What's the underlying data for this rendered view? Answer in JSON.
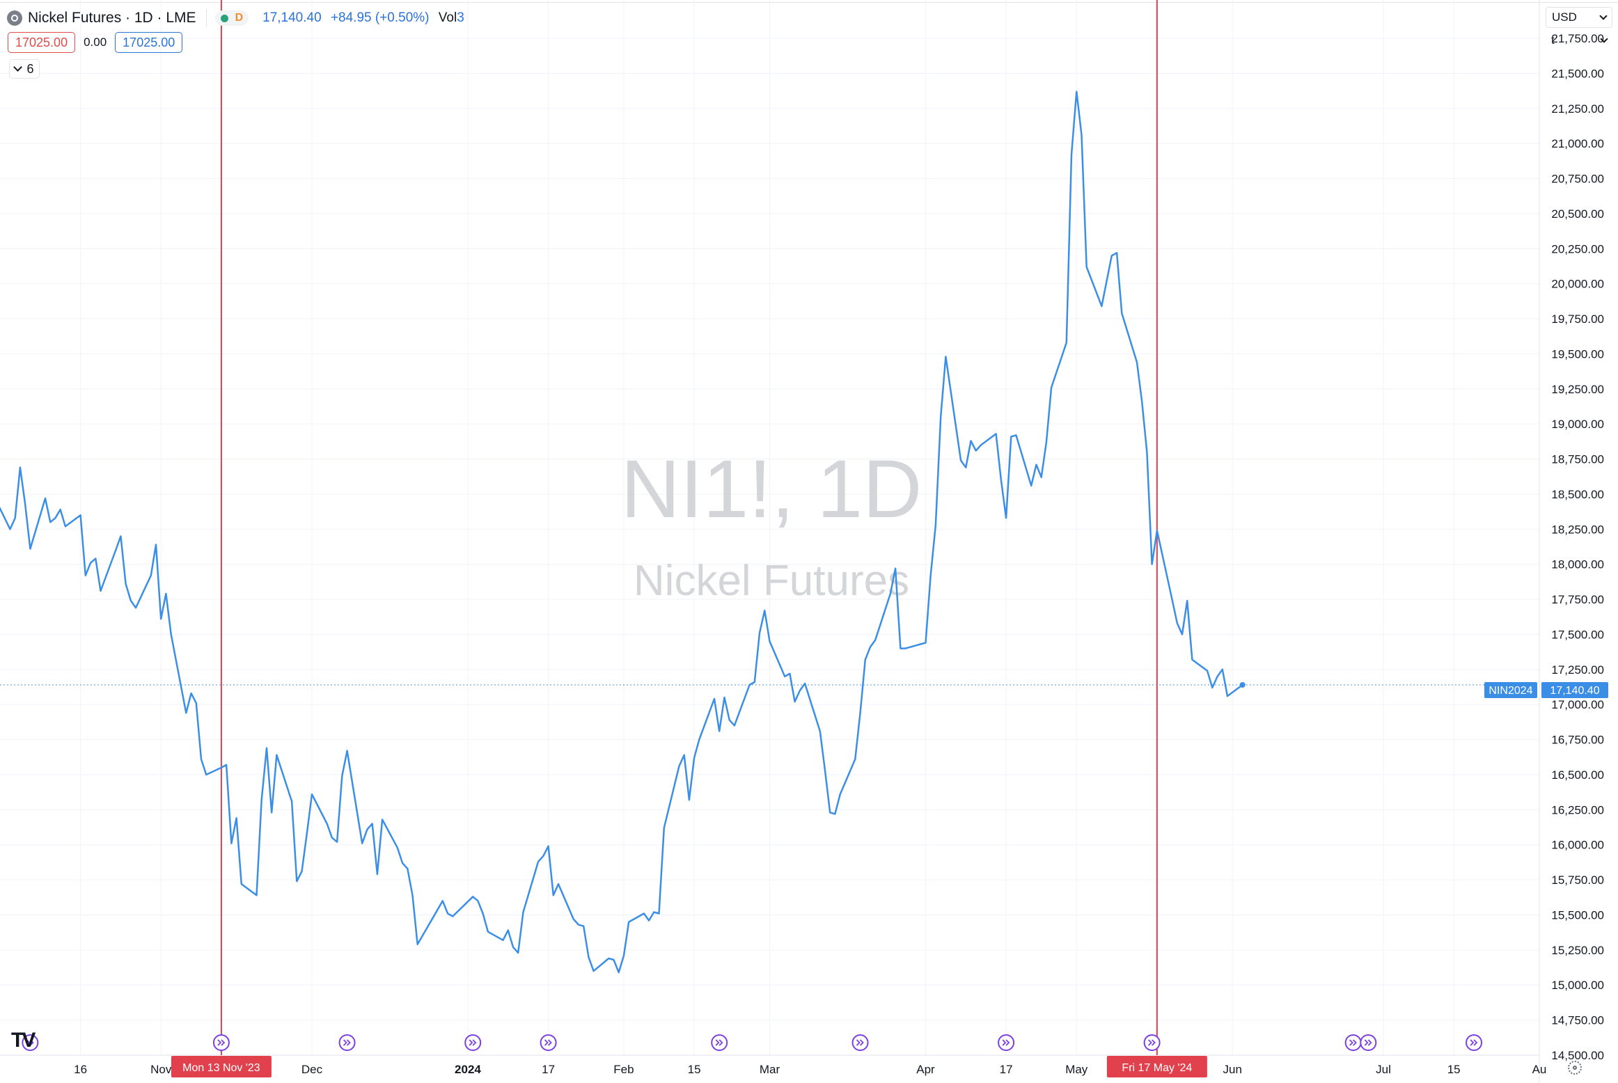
{
  "legend": {
    "title": "Nickel Futures · 1D · LME",
    "status_code": "D",
    "last_price": "17,140.40",
    "change": "+84.95 (+0.50%)",
    "vol_label": "Vol",
    "vol_value": "3"
  },
  "trade": {
    "bid": "17025.00",
    "spread": "0.00",
    "ask": "17025.00"
  },
  "indicators_toggle": {
    "count": "6"
  },
  "scale": {
    "currency": "USD",
    "unit": "t"
  },
  "watermark": {
    "symbol": "NI1!, 1D",
    "name": "Nickel Futures"
  },
  "price_label": {
    "symbol": "NIN2024",
    "price": "17,140.40"
  },
  "markers": [
    {
      "label": "Mon 13 Nov '23"
    },
    {
      "label": "Fri 17 May '24"
    }
  ],
  "colors": {
    "line": "#2a73d8",
    "marker": "#e0414d",
    "event": "#7b3fe4"
  },
  "chart_data": {
    "type": "line",
    "title": "",
    "xlabel": "",
    "ylabel": "",
    "ylim": [
      14500,
      21750
    ],
    "xlim": [
      "2023-09-30",
      "2024-08-01"
    ],
    "y_ticks": [
      21750,
      21500,
      21250,
      21000,
      20750,
      20500,
      20250,
      20000,
      19750,
      19500,
      19250,
      19000,
      18750,
      18500,
      18250,
      18000,
      17750,
      17500,
      17250,
      17000,
      16750,
      16500,
      16250,
      16000,
      15750,
      15500,
      15250,
      15000,
      14750,
      14500
    ],
    "x_ticks": [
      {
        "label": "16",
        "date": "2023-10-16"
      },
      {
        "label": "Nov",
        "date": "2023-11-01"
      },
      {
        "label": "Dec",
        "date": "2023-12-01"
      },
      {
        "label": "2024",
        "date": "2024-01-01"
      },
      {
        "label": "17",
        "date": "2024-01-17"
      },
      {
        "label": "Feb",
        "date": "2024-02-01"
      },
      {
        "label": "15",
        "date": "2024-02-15"
      },
      {
        "label": "Mar",
        "date": "2024-03-01"
      },
      {
        "label": "Apr",
        "date": "2024-04-01"
      },
      {
        "label": "17",
        "date": "2024-04-17"
      },
      {
        "label": "May",
        "date": "2024-05-01"
      },
      {
        "label": "Jun",
        "date": "2024-06-01"
      },
      {
        "label": "Jul",
        "date": "2024-07-01"
      },
      {
        "label": "15",
        "date": "2024-07-15"
      },
      {
        "label": "Au",
        "date": "2024-08-01"
      }
    ],
    "markers": [
      "2023-11-13",
      "2024-05-17"
    ],
    "events": [
      "2023-10-06",
      "2023-11-13",
      "2023-12-08",
      "2024-01-02",
      "2024-01-17",
      "2024-02-20",
      "2024-03-19",
      "2024-04-17",
      "2024-05-16",
      "2024-06-25",
      "2024-06-28",
      "2024-07-19"
    ],
    "series": [
      {
        "values": [
          [
            "2023-09-29",
            18470
          ],
          [
            "2023-10-02",
            18250
          ],
          [
            "2023-10-03",
            18330
          ],
          [
            "2023-10-04",
            18690
          ],
          [
            "2023-10-05",
            18430
          ],
          [
            "2023-10-06",
            18110
          ],
          [
            "2023-10-09",
            18470
          ],
          [
            "2023-10-10",
            18300
          ],
          [
            "2023-10-11",
            18330
          ],
          [
            "2023-10-12",
            18390
          ],
          [
            "2023-10-13",
            18270
          ],
          [
            "2023-10-16",
            18350
          ],
          [
            "2023-10-17",
            17920
          ],
          [
            "2023-10-18",
            18010
          ],
          [
            "2023-10-19",
            18040
          ],
          [
            "2023-10-20",
            17810
          ],
          [
            "2023-10-23",
            18100
          ],
          [
            "2023-10-24",
            18200
          ],
          [
            "2023-10-25",
            17860
          ],
          [
            "2023-10-26",
            17740
          ],
          [
            "2023-10-27",
            17690
          ],
          [
            "2023-10-30",
            17920
          ],
          [
            "2023-10-31",
            18140
          ],
          [
            "2023-11-01",
            17610
          ],
          [
            "2023-11-02",
            17790
          ],
          [
            "2023-11-03",
            17500
          ],
          [
            "2023-11-06",
            16940
          ],
          [
            "2023-11-07",
            17080
          ],
          [
            "2023-11-08",
            17010
          ],
          [
            "2023-11-09",
            16610
          ],
          [
            "2023-11-10",
            16500
          ],
          [
            "2023-11-13",
            16550
          ],
          [
            "2023-11-14",
            16570
          ],
          [
            "2023-11-15",
            16010
          ],
          [
            "2023-11-16",
            16190
          ],
          [
            "2023-11-17",
            15720
          ],
          [
            "2023-11-20",
            15640
          ],
          [
            "2023-11-21",
            16320
          ],
          [
            "2023-11-22",
            16690
          ],
          [
            "2023-11-23",
            16230
          ],
          [
            "2023-11-24",
            16640
          ],
          [
            "2023-11-27",
            16310
          ],
          [
            "2023-11-28",
            15740
          ],
          [
            "2023-11-29",
            15810
          ],
          [
            "2023-11-30",
            16080
          ],
          [
            "2023-12-01",
            16360
          ],
          [
            "2023-12-04",
            16150
          ],
          [
            "2023-12-05",
            16050
          ],
          [
            "2023-12-06",
            16020
          ],
          [
            "2023-12-07",
            16490
          ],
          [
            "2023-12-08",
            16670
          ],
          [
            "2023-12-11",
            16010
          ],
          [
            "2023-12-12",
            16110
          ],
          [
            "2023-12-13",
            16150
          ],
          [
            "2023-12-14",
            15790
          ],
          [
            "2023-12-15",
            16180
          ],
          [
            "2023-12-18",
            15980
          ],
          [
            "2023-12-19",
            15870
          ],
          [
            "2023-12-20",
            15830
          ],
          [
            "2023-12-21",
            15640
          ],
          [
            "2023-12-22",
            15290
          ],
          [
            "2023-12-27",
            15600
          ],
          [
            "2023-12-28",
            15510
          ],
          [
            "2023-12-29",
            15490
          ],
          [
            "2024-01-02",
            15630
          ],
          [
            "2024-01-03",
            15600
          ],
          [
            "2024-01-04",
            15510
          ],
          [
            "2024-01-05",
            15380
          ],
          [
            "2024-01-08",
            15320
          ],
          [
            "2024-01-09",
            15390
          ],
          [
            "2024-01-10",
            15270
          ],
          [
            "2024-01-11",
            15230
          ],
          [
            "2024-01-12",
            15520
          ],
          [
            "2024-01-15",
            15880
          ],
          [
            "2024-01-16",
            15920
          ],
          [
            "2024-01-17",
            15990
          ],
          [
            "2024-01-18",
            15640
          ],
          [
            "2024-01-19",
            15720
          ],
          [
            "2024-01-22",
            15470
          ],
          [
            "2024-01-23",
            15430
          ],
          [
            "2024-01-24",
            15420
          ],
          [
            "2024-01-25",
            15200
          ],
          [
            "2024-01-26",
            15100
          ],
          [
            "2024-01-29",
            15190
          ],
          [
            "2024-01-30",
            15180
          ],
          [
            "2024-01-31",
            15090
          ],
          [
            "2024-02-01",
            15210
          ],
          [
            "2024-02-02",
            15450
          ],
          [
            "2024-02-05",
            15510
          ],
          [
            "2024-02-06",
            15460
          ],
          [
            "2024-02-07",
            15520
          ],
          [
            "2024-02-08",
            15510
          ],
          [
            "2024-02-09",
            16120
          ],
          [
            "2024-02-12",
            16560
          ],
          [
            "2024-02-13",
            16640
          ],
          [
            "2024-02-14",
            16320
          ],
          [
            "2024-02-15",
            16620
          ],
          [
            "2024-02-16",
            16750
          ],
          [
            "2024-02-19",
            17040
          ],
          [
            "2024-02-20",
            16810
          ],
          [
            "2024-02-21",
            17050
          ],
          [
            "2024-02-22",
            16890
          ],
          [
            "2024-02-23",
            16850
          ],
          [
            "2024-02-26",
            17140
          ],
          [
            "2024-02-27",
            17160
          ],
          [
            "2024-02-28",
            17510
          ],
          [
            "2024-02-29",
            17670
          ],
          [
            "2024-03-01",
            17450
          ],
          [
            "2024-03-04",
            17200
          ],
          [
            "2024-03-05",
            17220
          ],
          [
            "2024-03-06",
            17020
          ],
          [
            "2024-03-07",
            17100
          ],
          [
            "2024-03-08",
            17150
          ],
          [
            "2024-03-11",
            16810
          ],
          [
            "2024-03-12",
            16530
          ],
          [
            "2024-03-13",
            16230
          ],
          [
            "2024-03-14",
            16220
          ],
          [
            "2024-03-15",
            16360
          ],
          [
            "2024-03-18",
            16610
          ],
          [
            "2024-03-19",
            16940
          ],
          [
            "2024-03-20",
            17320
          ],
          [
            "2024-03-21",
            17410
          ],
          [
            "2024-03-22",
            17460
          ],
          [
            "2024-03-25",
            17790
          ],
          [
            "2024-03-26",
            17970
          ],
          [
            "2024-03-27",
            17400
          ],
          [
            "2024-03-28",
            17400
          ],
          [
            "2024-04-01",
            17440
          ],
          [
            "2024-04-02",
            17920
          ],
          [
            "2024-04-03",
            18280
          ],
          [
            "2024-04-04",
            19050
          ],
          [
            "2024-04-05",
            19480
          ],
          [
            "2024-04-08",
            18740
          ],
          [
            "2024-04-09",
            18690
          ],
          [
            "2024-04-10",
            18880
          ],
          [
            "2024-04-11",
            18810
          ],
          [
            "2024-04-12",
            18850
          ],
          [
            "2024-04-15",
            18930
          ],
          [
            "2024-04-16",
            18600
          ],
          [
            "2024-04-17",
            18330
          ],
          [
            "2024-04-18",
            18910
          ],
          [
            "2024-04-19",
            18920
          ],
          [
            "2024-04-22",
            18560
          ],
          [
            "2024-04-23",
            18710
          ],
          [
            "2024-04-24",
            18620
          ],
          [
            "2024-04-25",
            18870
          ],
          [
            "2024-04-26",
            19260
          ],
          [
            "2024-04-29",
            19580
          ],
          [
            "2024-04-30",
            20920
          ],
          [
            "2024-05-01",
            21370
          ],
          [
            "2024-05-02",
            21060
          ],
          [
            "2024-05-03",
            20120
          ],
          [
            "2024-05-06",
            19840
          ],
          [
            "2024-05-07",
            20020
          ],
          [
            "2024-05-08",
            20200
          ],
          [
            "2024-05-09",
            20220
          ],
          [
            "2024-05-10",
            19790
          ],
          [
            "2024-05-13",
            19440
          ],
          [
            "2024-05-14",
            19160
          ],
          [
            "2024-05-15",
            18800
          ],
          [
            "2024-05-16",
            18000
          ],
          [
            "2024-05-17",
            18240
          ],
          [
            "2024-05-20",
            17750
          ],
          [
            "2024-05-21",
            17580
          ],
          [
            "2024-05-22",
            17500
          ],
          [
            "2024-05-23",
            17740
          ],
          [
            "2024-05-24",
            17320
          ],
          [
            "2024-05-27",
            17240
          ],
          [
            "2024-05-28",
            17120
          ],
          [
            "2024-05-29",
            17200
          ],
          [
            "2024-05-30",
            17250
          ],
          [
            "2024-05-31",
            17060
          ],
          [
            "2024-06-03",
            17140
          ]
        ]
      }
    ]
  }
}
